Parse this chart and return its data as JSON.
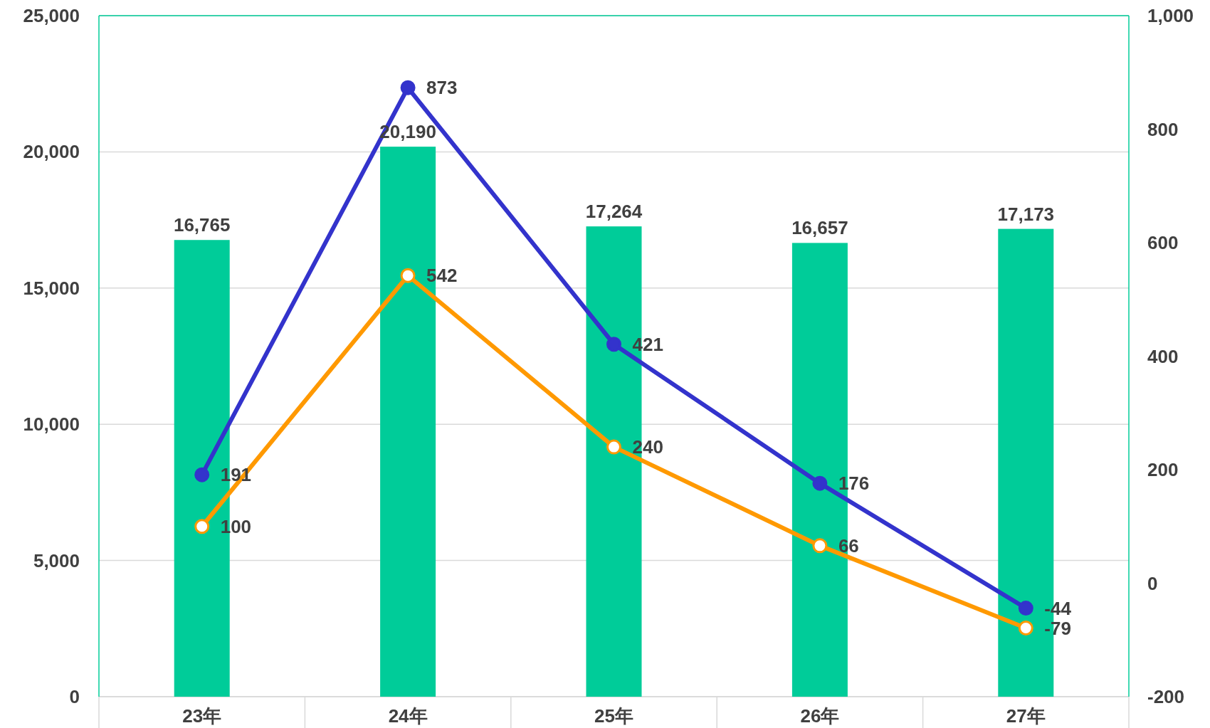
{
  "chart_data": {
    "type": "bar",
    "categories": [
      "23年",
      "24年",
      "25年",
      "26年",
      "27年"
    ],
    "series": [
      {
        "color": "#00cc99",
        "values": [
          16765,
          20190,
          17264,
          16657,
          17173
        ],
        "value_labels": [
          "16,765",
          "20,190",
          "17,264",
          "16,657",
          "17,173"
        ]
      },
      {
        "type": "line",
        "axis": "y2",
        "color": "#3333cc",
        "marker": "circle",
        "values": [
          191,
          873,
          421,
          176,
          -44
        ],
        "value_labels": [
          "191",
          "873",
          "421",
          "176",
          "-44"
        ]
      },
      {
        "type": "line",
        "axis": "y2",
        "color": "#ff9900",
        "marker": "circle",
        "values": [
          100,
          542,
          240,
          66,
          -79
        ],
        "value_labels": [
          "100",
          "542",
          "240",
          "66",
          "-79"
        ]
      }
    ],
    "ylim": [
      0,
      25000
    ],
    "yticks": [
      {
        "value": 0,
        "label": "0"
      },
      {
        "value": 5000,
        "label": "5,000"
      },
      {
        "value": 10000,
        "label": "10,000"
      },
      {
        "value": 15000,
        "label": "15,000"
      },
      {
        "value": 20000,
        "label": "20,000"
      },
      {
        "value": 25000,
        "label": "25,000"
      }
    ],
    "y2lim": [
      -200,
      1000
    ],
    "y2ticks": [
      {
        "value": -200,
        "label": "-200"
      },
      {
        "value": 0,
        "label": "0"
      },
      {
        "value": 200,
        "label": "200"
      },
      {
        "value": 400,
        "label": "400"
      },
      {
        "value": 600,
        "label": "600"
      },
      {
        "value": 800,
        "label": "800"
      },
      {
        "value": 1000,
        "label": "1,000"
      }
    ],
    "grid": "y"
  }
}
